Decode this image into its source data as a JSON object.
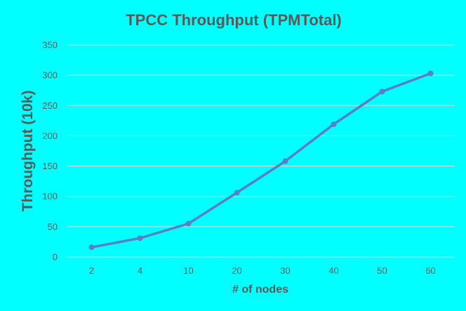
{
  "chart_data": {
    "type": "line",
    "title": "TPCC Throughput (TPMTotal)",
    "xlabel": "# of nodes",
    "ylabel": "Throughput (10k)",
    "categories": [
      "2",
      "4",
      "10",
      "20",
      "30",
      "40",
      "50",
      "60"
    ],
    "series": [
      {
        "values": [
          16,
          31,
          55,
          106,
          158,
          219,
          273,
          303
        ]
      }
    ],
    "ylim": [
      0,
      350
    ],
    "yticks": [
      0,
      50,
      100,
      150,
      200,
      250,
      300,
      350
    ],
    "grid": true,
    "legend": "none",
    "colors": {
      "background": "#00FFFF",
      "line": "#5B7FC4",
      "grid": "#D9D9D9",
      "text": "#595959"
    }
  }
}
